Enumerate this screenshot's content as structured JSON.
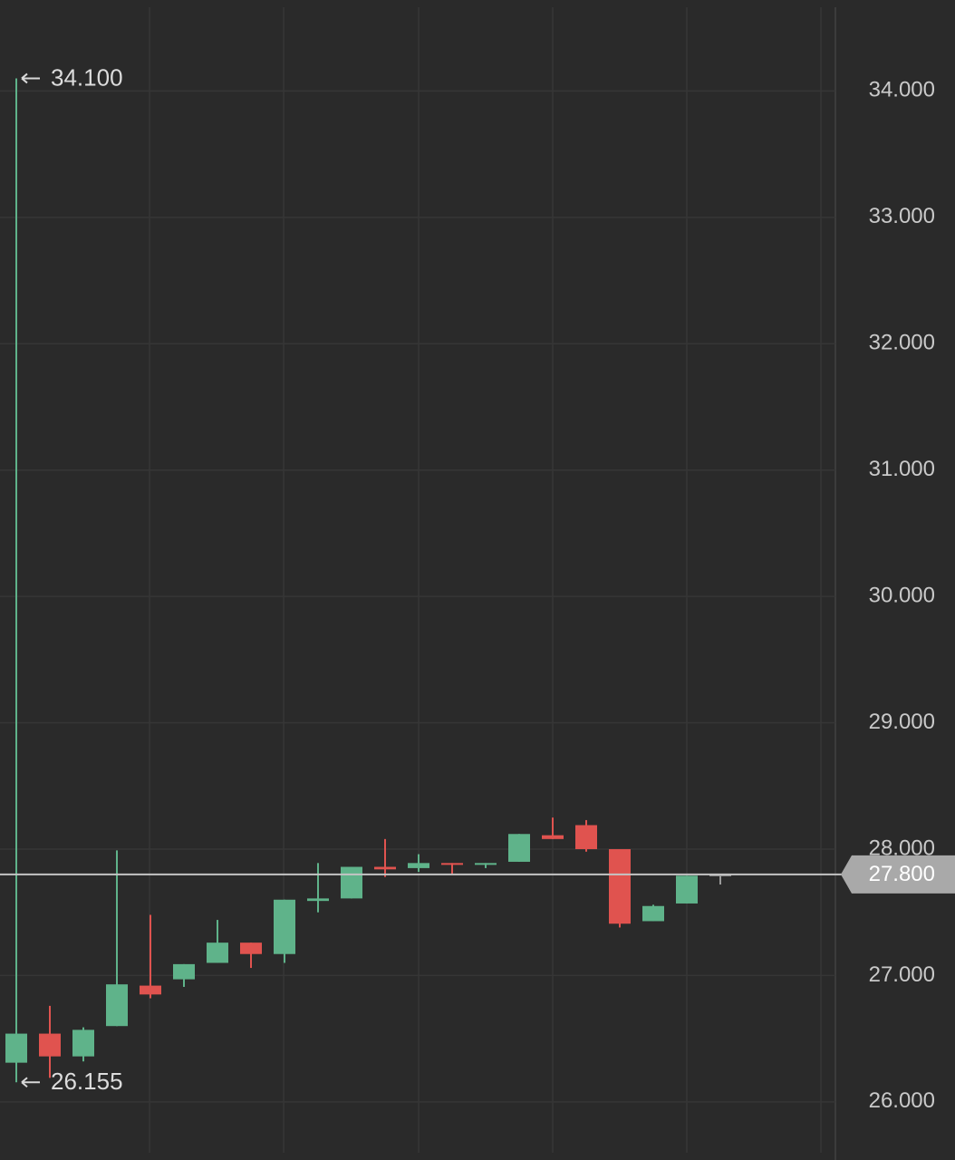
{
  "chart_data": {
    "type": "candlestick",
    "categories": [
      null,
      null,
      null,
      null,
      null,
      null,
      null,
      null,
      null,
      null,
      null,
      null,
      null,
      null,
      null,
      null,
      null,
      null,
      null,
      null,
      null,
      null
    ],
    "open": [
      26.31,
      26.54,
      26.36,
      26.6,
      26.92,
      26.97,
      27.1,
      27.26,
      27.17,
      27.59,
      27.61,
      27.86,
      27.85,
      27.89,
      27.88,
      27.9,
      28.11,
      28.19,
      28.0,
      27.43,
      27.57,
      27.79
    ],
    "high": [
      34.1,
      26.76,
      26.59,
      27.99,
      27.48,
      27.09,
      27.44,
      27.26,
      27.6,
      27.89,
      27.86,
      28.08,
      27.96,
      27.89,
      27.89,
      28.12,
      28.25,
      28.23,
      28.0,
      27.56,
      27.79,
      27.8
    ],
    "low": [
      26.155,
      26.19,
      26.32,
      26.6,
      26.82,
      26.91,
      27.1,
      27.06,
      27.1,
      27.5,
      27.61,
      27.78,
      27.82,
      27.8,
      27.85,
      27.9,
      28.08,
      27.98,
      27.38,
      27.43,
      27.57,
      27.72
    ],
    "close": [
      26.54,
      26.36,
      26.57,
      26.93,
      26.85,
      27.09,
      27.26,
      27.17,
      27.6,
      27.61,
      27.86,
      27.84,
      27.89,
      27.88,
      27.89,
      28.12,
      28.08,
      28.0,
      27.41,
      27.55,
      27.79,
      27.8
    ],
    "up_color": "#5fb38a",
    "down_color": "#e0534f",
    "last_color": "#9a9a9a",
    "ylim": [
      25.54,
      34.72
    ],
    "yticks": [
      {
        "value": 26,
        "label": "26.000"
      },
      {
        "value": 27,
        "label": "27.000"
      },
      {
        "value": 28,
        "label": "28.000"
      },
      {
        "value": 29,
        "label": "29.000"
      },
      {
        "value": 30,
        "label": "30.000"
      },
      {
        "value": 31,
        "label": "31.000"
      },
      {
        "value": 32,
        "label": "32.000"
      },
      {
        "value": 33,
        "label": "33.000"
      },
      {
        "value": 34,
        "label": "34.000"
      }
    ],
    "grid": true,
    "max_label": {
      "value": 34.1,
      "label": "34.100"
    },
    "min_label": {
      "value": 26.155,
      "label": "26.155"
    },
    "last_price": {
      "value": 27.8,
      "label": "27.800"
    }
  }
}
